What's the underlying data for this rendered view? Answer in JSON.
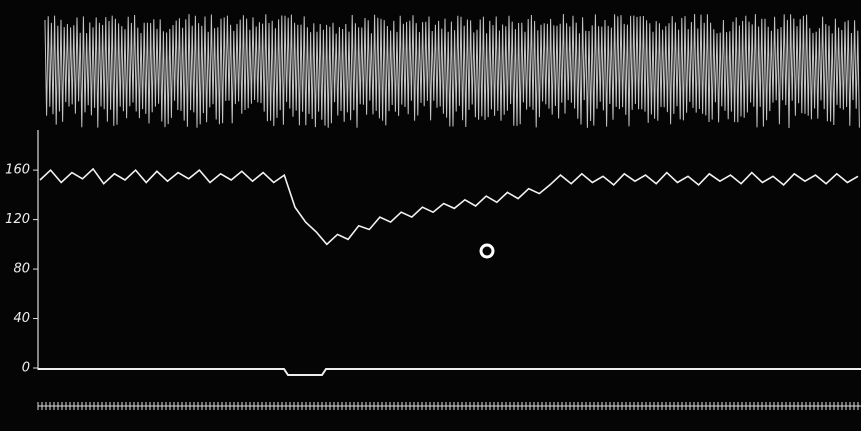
{
  "chart_data": {
    "type": "line",
    "ylim": [
      0,
      190
    ],
    "yticks": [
      0,
      40,
      80,
      120,
      160
    ],
    "color": "#f2f2f2",
    "values": [
      152,
      160,
      150,
      158,
      153,
      161,
      149,
      157,
      152,
      160,
      150,
      159,
      151,
      158,
      153,
      160,
      150,
      157,
      152,
      159,
      151,
      158,
      150,
      156,
      130,
      118,
      110,
      100,
      108,
      104,
      115,
      112,
      122,
      118,
      126,
      122,
      130,
      126,
      133,
      129,
      136,
      131,
      139,
      134,
      142,
      137,
      145,
      141,
      148,
      156,
      149,
      157,
      150,
      155,
      148,
      157,
      151,
      156,
      149,
      158,
      150,
      155,
      148,
      157,
      151,
      156,
      149,
      158,
      150,
      155,
      148,
      157,
      151,
      156,
      149,
      157,
      150,
      155
    ]
  }
}
